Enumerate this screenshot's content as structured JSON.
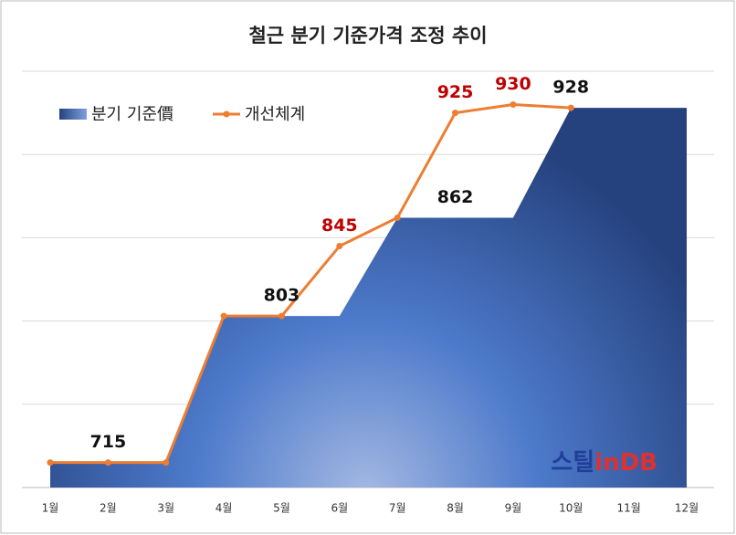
{
  "chart_data": {
    "type": "area-line",
    "title": "철근 분기 기준가격 조정 추이",
    "categories": [
      "1월",
      "2월",
      "3월",
      "4월",
      "5월",
      "6월",
      "7월",
      "8월",
      "9월",
      "10월",
      "11월",
      "12월"
    ],
    "series": [
      {
        "name": "분기 기준價",
        "type": "area",
        "color": "#3b63b0",
        "label_color": "#111111",
        "values": [
          715,
          715,
          715,
          803,
          803,
          803,
          862,
          862,
          862,
          928,
          928,
          928
        ],
        "value_labels": [
          null,
          715,
          null,
          null,
          803,
          null,
          null,
          862,
          null,
          928,
          null,
          null
        ]
      },
      {
        "name": "개선체계",
        "type": "line",
        "color": "#ed7d31",
        "label_color": "#c00000",
        "values": [
          715,
          715,
          715,
          803,
          803,
          845,
          862,
          925,
          930,
          928,
          null,
          null
        ],
        "value_labels": [
          null,
          null,
          null,
          null,
          null,
          845,
          null,
          925,
          930,
          null,
          null,
          null
        ]
      }
    ],
    "ylim": [
      700,
      950
    ],
    "yticks": [
      700,
      750,
      800,
      850,
      900,
      950
    ],
    "grid": true,
    "legend": "top-left",
    "watermark": [
      "스틸",
      "in",
      "DB"
    ]
  }
}
